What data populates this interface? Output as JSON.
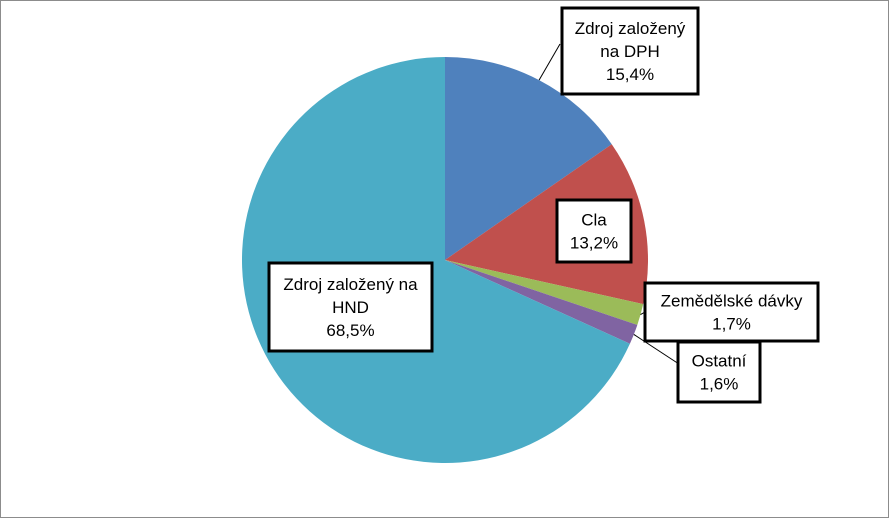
{
  "chart_data": {
    "type": "pie",
    "title": "",
    "start_angle_deg": 0,
    "direction": "clockwise",
    "legend": "none",
    "slices": [
      {
        "name": "Zdroj založený na DPH",
        "value": 15.4,
        "label": "15,4%",
        "label_lines": [
          "Zdroj založený",
          "na DPH",
          "15,4%"
        ],
        "color": "#4f81bd"
      },
      {
        "name": "Cla",
        "value": 13.2,
        "label": "13,2%",
        "label_lines": [
          "Cla",
          "13,2%"
        ],
        "color": "#c0504d"
      },
      {
        "name": "Zemědělské dávky",
        "value": 1.7,
        "label": "1,7%",
        "label_lines": [
          "Zemědělské dávky",
          "1,7%"
        ],
        "color": "#9bbb59"
      },
      {
        "name": "Ostatní",
        "value": 1.6,
        "label": "1,6%",
        "label_lines": [
          "Ostatní",
          "1,6%"
        ],
        "color": "#8064a2"
      },
      {
        "name": "Zdroj založený na HND",
        "value": 68.5,
        "label": "68,5%",
        "label_lines": [
          "Zdroj založený na",
          "HND",
          "68,5%"
        ],
        "color": "#4bacc6"
      }
    ]
  }
}
